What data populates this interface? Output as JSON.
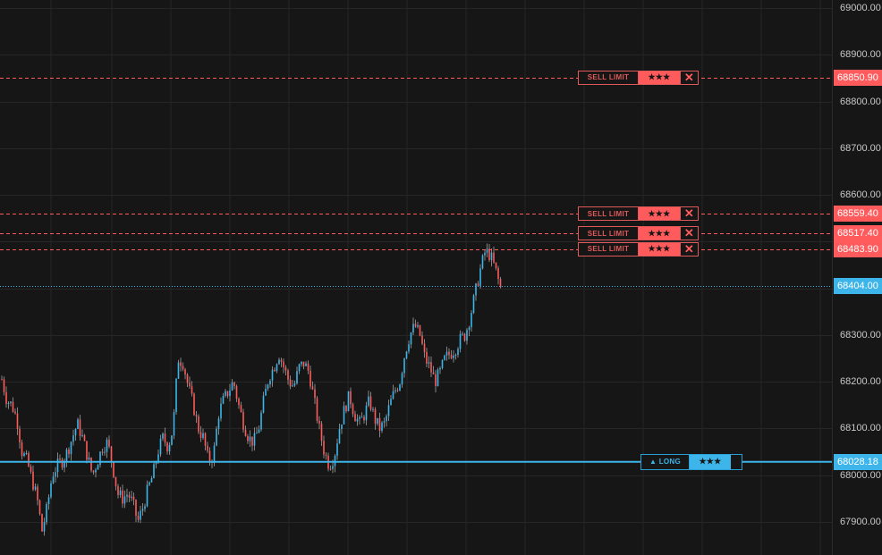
{
  "colors": {
    "background": "#161616",
    "grid": "#262626",
    "candle_up": "#3db5ea",
    "candle_down": "#ff5b5c",
    "wick": "#d0d0d0",
    "sell_accent": "#ff5b5c",
    "long_accent": "#3db5ea",
    "axis_text": "#c8c8c8"
  },
  "price_axis": {
    "ticks": [
      "69000.00",
      "68900.00",
      "68800.00",
      "68700.00",
      "68600.00",
      "68300.00",
      "68200.00",
      "68100.00",
      "68000.00",
      "67900.00"
    ]
  },
  "current_price": {
    "label": "68404.00",
    "value": 68404.0
  },
  "orders": [
    {
      "type_label": "SELL LIMIT",
      "qty_label": "★★★",
      "close_icon": "close-icon",
      "price_label": "68850.90",
      "price": 68850.9
    },
    {
      "type_label": "SELL LIMIT",
      "qty_label": "★★★",
      "close_icon": "close-icon",
      "price_label": "68559.40",
      "price": 68559.4
    },
    {
      "type_label": "SELL LIMIT",
      "qty_label": "★★★",
      "close_icon": "close-icon",
      "price_label": "68517.40",
      "price": 68517.4
    },
    {
      "type_label": "SELL LIMIT",
      "qty_label": "★★★",
      "close_icon": "close-icon",
      "price_label": "68483.90",
      "price": 68483.9
    }
  ],
  "position": {
    "type_label": "▲ LONG",
    "qty_label": "★★★",
    "price_label": "68028.18",
    "price": 68028.18
  },
  "price_path": [
    68205,
    68160,
    68150,
    68120,
    68050,
    68030,
    67990,
    67950,
    67880,
    67930,
    68000,
    68020,
    68030,
    68050,
    68080,
    68110,
    68080,
    68040,
    68000,
    68030,
    68060,
    68070,
    68020,
    67960,
    67950,
    67960,
    67940,
    67900,
    67930,
    67970,
    68000,
    68050,
    68080,
    68060,
    68100,
    68250,
    68240,
    68190,
    68150,
    68100,
    68080,
    68030,
    68040,
    68130,
    68160,
    68180,
    68200,
    68150,
    68110,
    68080,
    68070,
    68100,
    68160,
    68210,
    68230,
    68260,
    68230,
    68200,
    68190,
    68230,
    68240,
    68220,
    68160,
    68100,
    68050,
    68020,
    68040,
    68100,
    68140,
    68170,
    68130,
    68110,
    68130,
    68160,
    68120,
    68100,
    68110,
    68150,
    68180,
    68200,
    68260,
    68300,
    68320,
    68300,
    68250,
    68230,
    68200,
    68220,
    68250,
    68260,
    68270,
    68290,
    68300,
    68340,
    68390,
    68440,
    68480,
    68470,
    68440,
    68400
  ]
}
